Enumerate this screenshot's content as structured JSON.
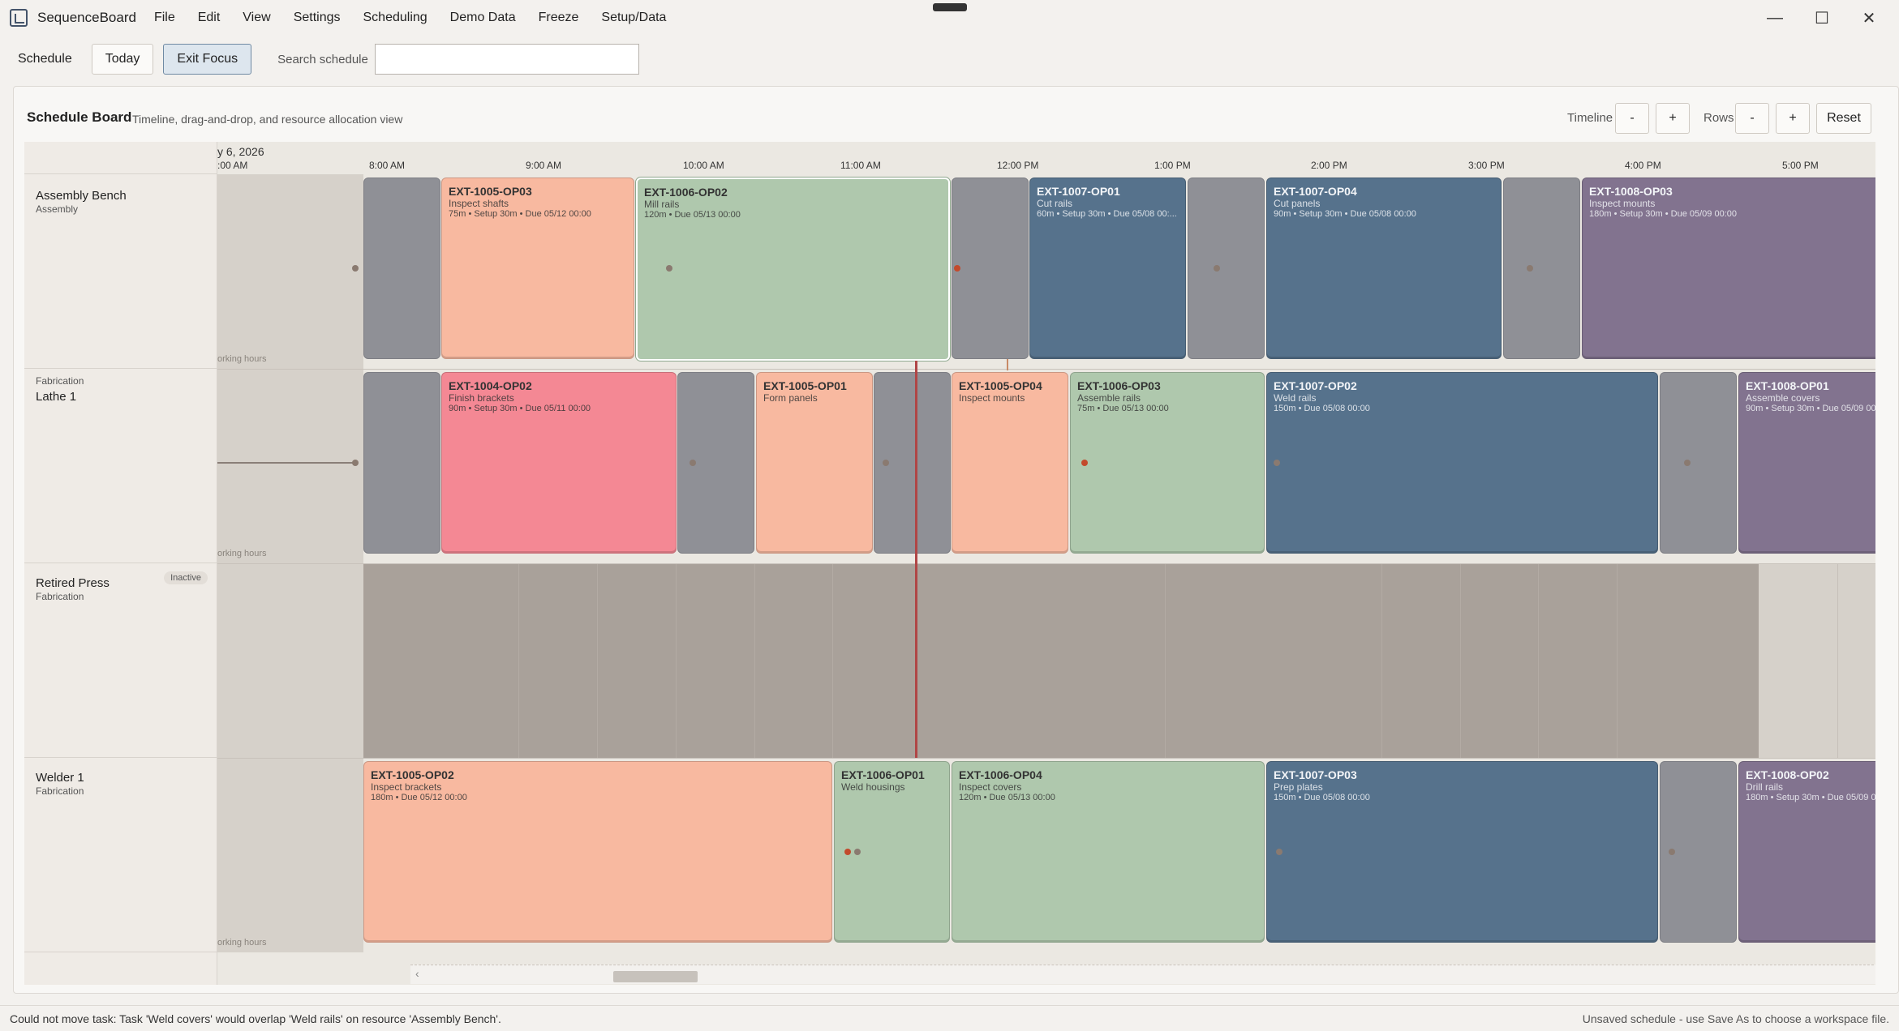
{
  "window": {
    "app_title": "SequenceBoard",
    "menu": [
      "File",
      "Edit",
      "View",
      "Settings",
      "Scheduling",
      "Demo Data",
      "Freeze",
      "Setup/Data"
    ],
    "minimize": "—",
    "maximize": "☐",
    "close": "✕"
  },
  "toolbar": {
    "schedule_label": "Schedule",
    "today_label": "Today",
    "exit_focus_label": "Exit Focus",
    "search_label": "Search schedule",
    "search_value": "",
    "search_placeholder": ""
  },
  "board": {
    "title": "Schedule Board",
    "subtitle": "Timeline, drag-and-drop, and resource allocation view",
    "timeline_label": "Timeline",
    "rows_label": "Rows",
    "minus": "-",
    "plus": "+",
    "reset_label": "Reset",
    "date_header": "y 6, 2026",
    "times": [
      ":00 AM",
      "8:00 AM",
      "9:00 AM",
      "10:00 AM",
      "11:00 AM",
      "12:00 PM",
      "1:00 PM",
      "2:00 PM",
      "3:00 PM",
      "4:00 PM",
      "5:00 PM"
    ],
    "nonworking_label": "orking hours"
  },
  "resources": [
    {
      "name": "Assembly Bench",
      "group": "Assembly",
      "group_above": "",
      "badge": ""
    },
    {
      "name": "Lathe 1",
      "group": "",
      "group_above": "Fabrication",
      "badge": ""
    },
    {
      "name": "Retired Press",
      "group": "Fabrication",
      "group_above": "",
      "badge": "Inactive"
    },
    {
      "name": "Welder 1",
      "group": "Fabrication",
      "group_above": "",
      "badge": ""
    }
  ],
  "tasks": {
    "r0t0": {
      "id": "EXT-1005-OP03",
      "name": "Inspect shafts",
      "meta": "75m • Setup 30m • Due 05/12 00:00",
      "color": "#f8b9a0"
    },
    "r0t1": {
      "id": "EXT-1006-OP02",
      "name": "Mill rails",
      "meta": "120m • Due 05/13 00:00",
      "color": "#afc8ad"
    },
    "r0t2": {
      "id": "EXT-1007-OP01",
      "name": "Cut rails",
      "meta": "60m • Setup 30m • Due 05/08 00:...",
      "color": "#56728c"
    },
    "r0t3": {
      "id": "EXT-1007-OP04",
      "name": "Cut panels",
      "meta": "90m • Setup 30m • Due 05/08 00:00",
      "color": "#56728c"
    },
    "r0t4": {
      "id": "EXT-1008-OP03",
      "name": "Inspect mounts",
      "meta": "180m • Setup 30m • Due 05/09 00:00",
      "color": "#82738f"
    },
    "r1t0": {
      "id": "EXT-1004-OP02",
      "name": "Finish brackets",
      "meta": "90m • Setup 30m • Due 05/11 00:00",
      "color": "#f48894"
    },
    "r1t1": {
      "id": "EXT-1005-OP01",
      "name": "Form panels",
      "meta": "",
      "color": "#f8b9a0"
    },
    "r1t2": {
      "id": "EXT-1005-OP04",
      "name": "Inspect mounts",
      "meta": "",
      "color": "#f8b9a0"
    },
    "r1t3": {
      "id": "EXT-1006-OP03",
      "name": "Assemble rails",
      "meta": "75m • Due 05/13 00:00",
      "color": "#afc8ad"
    },
    "r1t4": {
      "id": "EXT-1007-OP02",
      "name": "Weld rails",
      "meta": "150m • Due 05/08 00:00",
      "color": "#56728c"
    },
    "r1t5": {
      "id": "EXT-1008-OP01",
      "name": "Assemble covers",
      "meta": "90m • Setup 30m • Due 05/09 00:00",
      "color": "#82738f"
    },
    "r3t0": {
      "id": "EXT-1005-OP02",
      "name": "Inspect brackets",
      "meta": "180m • Due 05/12 00:00",
      "color": "#f8b9a0"
    },
    "r3t1": {
      "id": "EXT-1006-OP01",
      "name": "Weld housings",
      "meta": "",
      "color": "#afc8ad"
    },
    "r3t2": {
      "id": "EXT-1006-OP04",
      "name": "Inspect covers",
      "meta": "120m • Due 05/13 00:00",
      "color": "#afc8ad"
    },
    "r3t3": {
      "id": "EXT-1007-OP03",
      "name": "Prep plates",
      "meta": "150m • Due 05/08 00:00",
      "color": "#56728c"
    },
    "r3t4": {
      "id": "EXT-1008-OP02",
      "name": "Drill rails",
      "meta": "180m • Setup 30m • Due 05/09 00:00",
      "color": "#82738f"
    }
  },
  "status": {
    "message": "Could not move task: Task 'Weld covers' would overlap 'Weld rails' on resource 'Assembly Bench'.",
    "right": "Unsaved schedule - use Save As to choose a workspace file."
  }
}
